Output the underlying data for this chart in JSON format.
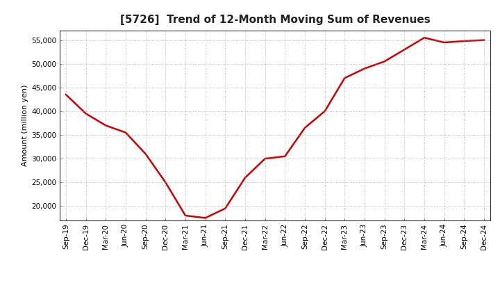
{
  "title": "[5726]  Trend of 12-Month Moving Sum of Revenues",
  "ylabel": "Amount (million yen)",
  "line_color": "#cc0000",
  "line_width": 1.8,
  "background_color": "#ffffff",
  "grid_color": "#999999",
  "x_labels": [
    "Sep-19",
    "Dec-19",
    "Mar-20",
    "Jun-20",
    "Sep-20",
    "Dec-20",
    "Mar-21",
    "Jun-21",
    "Sep-21",
    "Dec-21",
    "Mar-22",
    "Jun-22",
    "Sep-22",
    "Dec-22",
    "Mar-23",
    "Jun-23",
    "Sep-23",
    "Dec-23",
    "Mar-24",
    "Jun-24",
    "Sep-24",
    "Dec-24"
  ],
  "y_values": [
    43500,
    39500,
    37000,
    35500,
    31000,
    25000,
    18000,
    17500,
    19500,
    26000,
    30000,
    30500,
    36500,
    40000,
    47000,
    49000,
    50500,
    53000,
    55500,
    54500,
    54800,
    55000
  ],
  "ylim_min": 17000,
  "ylim_max": 57000,
  "yticks": [
    20000,
    25000,
    30000,
    35000,
    40000,
    45000,
    50000,
    55000
  ],
  "title_fontsize": 11,
  "ylabel_fontsize": 8,
  "tick_fontsize": 7.5
}
